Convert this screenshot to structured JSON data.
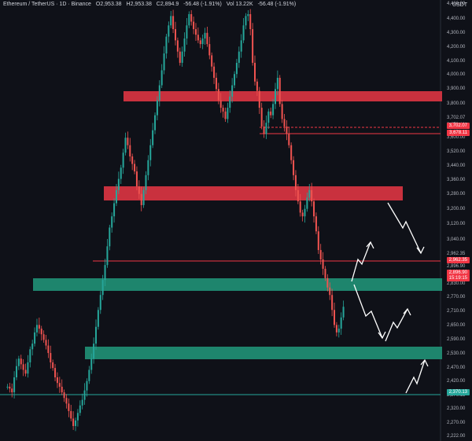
{
  "header": {
    "symbol": "Ethereum / TetherUS · 1D · Binance",
    "open": "O2,953.38",
    "high": "H2,953.38",
    "close": "C2,894.9",
    "change": "-56.48 (-1.91%)",
    "volume": "Vol 13.22K",
    "change_repeat": "-56.48 (-1.91%)"
  },
  "axis_unit": "USDT",
  "chart_data": {
    "type": "candlestick",
    "y_ticks": [
      "4,460.00",
      "4,400.00",
      "4,300.00",
      "4,200.00",
      "4,100.00",
      "4,000.00",
      "3,900.00",
      "3,800.00",
      "3,702.07",
      "3,678.11",
      "3,600.00",
      "3,520.00",
      "3,440.00",
      "3,360.00",
      "3,280.00",
      "3,200.00",
      "3,120.00",
      "3,040.00",
      "2,962.35",
      "2,896.90",
      "15:19:15",
      "2,830.00",
      "2,770.00",
      "2,710.00",
      "2,650.00",
      "2,590.00",
      "2,530.00",
      "2,470.00",
      "2,420.00",
      "2,370.13",
      "2,320.00",
      "2,270.00",
      "2,222.00"
    ],
    "labels": [
      {
        "text": "3,702.07",
        "color": "#f23645",
        "value": 3702.07
      },
      {
        "text": "3,678.11",
        "color": "#f23645",
        "value": 3678.11
      },
      {
        "text": "2,962.35",
        "color": "#f23645",
        "value": 2962.35
      },
      {
        "text": "2,896.90",
        "color": "#f23645",
        "value": 2896.9
      },
      {
        "text": "15:19:15",
        "color": "#f23645"
      },
      {
        "text": "2,370.13",
        "color": "#26a69a",
        "value": 2370.13
      }
    ],
    "zones": [
      {
        "type": "resistance",
        "color": "#d93442",
        "low": 3885,
        "high": 3920
      },
      {
        "type": "resistance",
        "color": "#d93442",
        "low": 3300,
        "high": 3350
      },
      {
        "type": "support",
        "color": "#1f8f75",
        "low": 2830,
        "high": 2870
      },
      {
        "type": "support",
        "color": "#1f8f75",
        "low": 2520,
        "high": 2555
      }
    ],
    "lines": [
      {
        "value": 3702.07,
        "color": "#f23645",
        "style": "dashed"
      },
      {
        "value": 3678.11,
        "color": "#f23645",
        "style": "solid"
      },
      {
        "value": 2962.35,
        "color": "#f23645",
        "style": "solid"
      },
      {
        "value": 2370.13,
        "color": "#26a69a",
        "style": "solid"
      }
    ],
    "candles_close": [
      2470,
      2460,
      2440,
      2520,
      2580,
      2620,
      2590,
      2560,
      2540,
      2600,
      2670,
      2700,
      2760,
      2800,
      2780,
      2750,
      2720,
      2690,
      2650,
      2600,
      2570,
      2520,
      2490,
      2470,
      2440,
      2410,
      2380,
      2340,
      2300,
      2260,
      2290,
      2330,
      2370,
      2400,
      2450,
      2500,
      2560,
      2620,
      2700,
      2790,
      2880,
      2960,
      3040,
      3120,
      3220,
      3320,
      3380,
      3450,
      3520,
      3580,
      3640,
      3720,
      3800,
      3760,
      3700,
      3660,
      3620,
      3540,
      3500,
      3440,
      3520,
      3600,
      3680,
      3760,
      3840,
      3920,
      4000,
      4080,
      4160,
      4250,
      4340,
      4400,
      4450,
      4380,
      4320,
      4260,
      4200,
      4260,
      4330,
      4400,
      4460,
      4420,
      4380,
      4350,
      4320,
      4300,
      4330,
      4360,
      4300,
      4240,
      4180,
      4120,
      4060,
      4000,
      3960,
      3940,
      3900,
      3960,
      4020,
      4080,
      4140,
      4200,
      4260,
      4320,
      4400,
      4450,
      4460,
      4380,
      4200,
      4100,
      4050,
      3960,
      3860,
      3820,
      3880,
      3940,
      3920,
      3980,
      4060,
      4120,
      3980,
      3900,
      3860,
      3820,
      3760,
      3680,
      3600,
      3520,
      3460,
      3400,
      3380,
      3420,
      3480,
      3520,
      3460,
      3380,
      3300,
      3200,
      3150,
      3100,
      3050,
      3000,
      2960,
      2880,
      2800,
      2760,
      2780,
      2840,
      2897
    ]
  }
}
